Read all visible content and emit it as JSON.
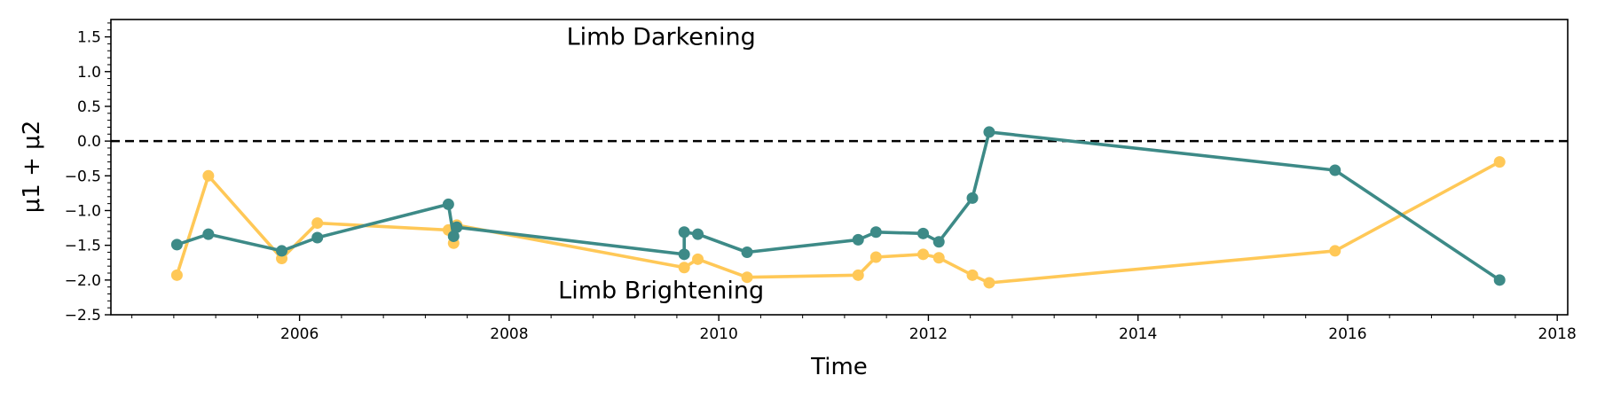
{
  "chart_data": {
    "type": "line",
    "title": "",
    "xlabel": "Time",
    "ylabel": "μ1 + μ2",
    "xlim": [
      2004.2,
      2018.1
    ],
    "ylim": [
      -2.5,
      1.75
    ],
    "x_ticks": [
      2006,
      2008,
      2010,
      2012,
      2014,
      2016,
      2018
    ],
    "x_tick_labels": [
      "2006",
      "2008",
      "2010",
      "2012",
      "2014",
      "2016",
      "2018"
    ],
    "y_ticks": [
      -2.5,
      -2.0,
      -1.5,
      -1.0,
      -0.5,
      0.0,
      0.5,
      1.0,
      1.5
    ],
    "y_tick_labels": [
      "−2.5",
      "−2.0",
      "−1.5",
      "−1.0",
      "−0.5",
      "0.0",
      "0.5",
      "1.0",
      "1.5"
    ],
    "reference_line": {
      "y": 0.0,
      "style": "dashed",
      "color": "#000000"
    },
    "annotations": [
      {
        "text": "Limb Darkening",
        "x": 2009.45,
        "y": 1.5
      },
      {
        "text": "Limb Brightening",
        "x": 2009.45,
        "y": -2.15
      }
    ],
    "legend": "none",
    "grid": false,
    "series": [
      {
        "name": "yellow",
        "color": "#FFC857",
        "x": [
          2004.83,
          2005.13,
          2005.83,
          2006.17,
          2007.42,
          2007.47,
          2007.5,
          2009.67,
          2009.8,
          2010.27,
          2011.33,
          2011.5,
          2011.95,
          2012.1,
          2012.42,
          2012.58,
          2015.88,
          2017.45
        ],
        "y": [
          -1.93,
          -0.5,
          -1.69,
          -1.18,
          -1.28,
          -1.47,
          -1.21,
          -1.82,
          -1.7,
          -1.96,
          -1.93,
          -1.67,
          -1.63,
          -1.68,
          -1.93,
          -2.04,
          -1.58,
          -0.3
        ]
      },
      {
        "name": "teal",
        "color": "#3D8A87",
        "x": [
          2004.83,
          2005.13,
          2005.83,
          2006.17,
          2007.42,
          2007.47,
          2007.5,
          2009.67,
          2009.67,
          2009.8,
          2010.27,
          2011.33,
          2011.5,
          2011.95,
          2012.1,
          2012.42,
          2012.58,
          2015.88,
          2017.45
        ],
        "y": [
          -1.49,
          -1.34,
          -1.58,
          -1.39,
          -0.91,
          -1.37,
          -1.24,
          -1.63,
          -1.31,
          -1.34,
          -1.6,
          -1.42,
          -1.31,
          -1.33,
          -1.45,
          -0.82,
          0.13,
          -0.42,
          -2.0
        ]
      }
    ]
  }
}
